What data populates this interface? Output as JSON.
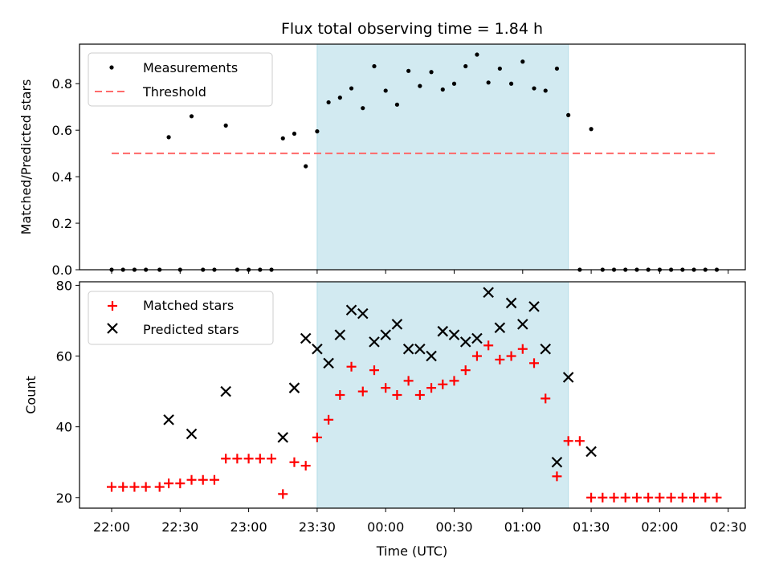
{
  "chart_data": [
    {
      "type": "scatter",
      "title": "Flux total observing time = 1.84 h",
      "xlabel": "",
      "ylabel": "Matched/Predicted stars",
      "ylim": [
        0,
        0.97
      ],
      "yticks": [
        "0.0",
        "0.2",
        "0.4",
        "0.6",
        "0.8"
      ],
      "ytick_values": [
        0,
        0.2,
        0.4,
        0.6,
        0.8
      ],
      "legend_position": "upper left",
      "shaded_span": [
        "23:30",
        "01:20"
      ],
      "shaded_color": "#add8e6",
      "threshold": {
        "name": "Threshold",
        "value": 0.5,
        "x_range": [
          "22:00",
          "02:25"
        ],
        "color": "#ff6b6b",
        "style": "dashed"
      },
      "series": [
        {
          "name": "Measurements",
          "marker": "dot",
          "color": "#000000",
          "x": [
            "22:00",
            "22:05",
            "22:10",
            "22:15",
            "22:21",
            "22:25",
            "22:30",
            "22:35",
            "22:40",
            "22:45",
            "22:50",
            "22:55",
            "23:00",
            "23:05",
            "23:10",
            "23:15",
            "23:20",
            "23:25",
            "23:30",
            "23:35",
            "23:40",
            "23:45",
            "23:50",
            "23:55",
            "00:00",
            "00:05",
            "00:10",
            "00:15",
            "00:20",
            "00:25",
            "00:30",
            "00:35",
            "00:40",
            "00:45",
            "00:50",
            "00:55",
            "01:00",
            "01:05",
            "01:10",
            "01:15",
            "01:20",
            "01:25",
            "01:30",
            "01:35",
            "01:40",
            "01:45",
            "01:50",
            "01:55",
            "02:00",
            "02:05",
            "02:10",
            "02:15",
            "02:20",
            "02:25"
          ],
          "y": [
            0,
            0,
            0,
            0,
            0,
            0.57,
            0,
            0.66,
            0,
            0,
            0.62,
            0,
            0,
            0,
            0,
            0.565,
            0.585,
            0.445,
            0.595,
            0.72,
            0.74,
            0.78,
            0.695,
            0.875,
            0.77,
            0.71,
            0.855,
            0.79,
            0.85,
            0.775,
            0.8,
            0.875,
            0.925,
            0.805,
            0.865,
            0.8,
            0.895,
            0.78,
            0.77,
            0.865,
            0.665,
            0,
            0.605,
            0,
            0,
            0,
            0,
            0,
            0,
            0,
            0,
            0,
            0,
            0
          ]
        }
      ]
    },
    {
      "type": "scatter",
      "title": "",
      "xlabel": "Time (UTC)",
      "ylabel": "Count",
      "ylim": [
        17,
        81
      ],
      "yticks": [
        "20",
        "40",
        "60",
        "80"
      ],
      "ytick_values": [
        20,
        40,
        60,
        80
      ],
      "x_tick_labels": [
        "22:00",
        "22:30",
        "23:00",
        "23:30",
        "00:00",
        "00:30",
        "01:00",
        "01:30",
        "02:00",
        "02:30"
      ],
      "legend_position": "upper left",
      "shaded_span": [
        "23:30",
        "01:20"
      ],
      "series": [
        {
          "name": "Matched stars",
          "marker": "plus",
          "color": "#ff0000",
          "x": [
            "22:00",
            "22:05",
            "22:10",
            "22:15",
            "22:21",
            "22:25",
            "22:30",
            "22:35",
            "22:40",
            "22:45",
            "22:50",
            "22:55",
            "23:00",
            "23:05",
            "23:10",
            "23:15",
            "23:20",
            "23:25",
            "23:30",
            "23:35",
            "23:40",
            "23:45",
            "23:50",
            "23:55",
            "00:00",
            "00:05",
            "00:10",
            "00:15",
            "00:20",
            "00:25",
            "00:30",
            "00:35",
            "00:40",
            "00:45",
            "00:50",
            "00:55",
            "01:00",
            "01:05",
            "01:10",
            "01:15",
            "01:20",
            "01:25",
            "01:30",
            "01:35",
            "01:40",
            "01:45",
            "01:50",
            "01:55",
            "02:00",
            "02:05",
            "02:10",
            "02:15",
            "02:20",
            "02:25"
          ],
          "y": [
            23,
            23,
            23,
            23,
            23,
            24,
            24,
            25,
            25,
            25,
            31,
            31,
            31,
            31,
            31,
            21,
            30,
            29,
            37,
            42,
            49,
            57,
            50,
            56,
            51,
            49,
            53,
            49,
            51,
            52,
            53,
            56,
            60,
            63,
            59,
            60,
            62,
            58,
            48,
            26,
            36,
            36,
            20,
            20,
            20,
            20,
            20,
            20,
            20,
            20,
            20,
            20,
            20,
            20
          ]
        },
        {
          "name": "Predicted stars",
          "marker": "x",
          "color": "#000000",
          "x": [
            "22:25",
            "22:35",
            "22:50",
            "23:15",
            "23:20",
            "23:25",
            "23:30",
            "23:35",
            "23:40",
            "23:45",
            "23:50",
            "23:55",
            "00:00",
            "00:05",
            "00:10",
            "00:15",
            "00:20",
            "00:25",
            "00:30",
            "00:35",
            "00:40",
            "00:45",
            "00:50",
            "00:55",
            "01:00",
            "01:05",
            "01:10",
            "01:15",
            "01:20",
            "01:30"
          ],
          "y": [
            42,
            38,
            50,
            37,
            51,
            65,
            62,
            58,
            66,
            73,
            72,
            64,
            66,
            69,
            62,
            62,
            60,
            67,
            66,
            64,
            65,
            78,
            68,
            75,
            69,
            74,
            62,
            30,
            54,
            33
          ]
        }
      ]
    }
  ]
}
